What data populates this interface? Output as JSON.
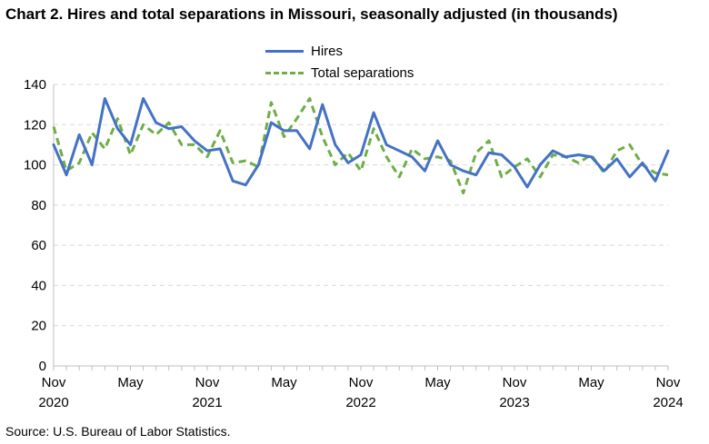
{
  "chart_data": {
    "type": "line",
    "title": "Chart 2. Hires and total separations in Missouri, seasonally adjusted (in thousands)",
    "xlabel": "",
    "ylabel": "",
    "ylim": [
      0,
      140
    ],
    "y_ticks": [
      0,
      20,
      40,
      60,
      80,
      100,
      120,
      140
    ],
    "grid": "horizontal-dashed",
    "legend_position": "top-center",
    "x_tick_labels": [
      {
        "month": "Nov",
        "year": "2020",
        "index": 0
      },
      {
        "month": "May",
        "year": "",
        "index": 6
      },
      {
        "month": "Nov",
        "year": "2021",
        "index": 12
      },
      {
        "month": "May",
        "year": "",
        "index": 18
      },
      {
        "month": "Nov",
        "year": "2022",
        "index": 24
      },
      {
        "month": "May",
        "year": "",
        "index": 30
      },
      {
        "month": "Nov",
        "year": "2023",
        "index": 36
      },
      {
        "month": "May",
        "year": "",
        "index": 42
      },
      {
        "month": "Nov",
        "year": "2024",
        "index": 48
      }
    ],
    "x": [
      "Nov 2020",
      "Dec 2020",
      "Jan 2021",
      "Feb 2021",
      "Mar 2021",
      "Apr 2021",
      "May 2021",
      "Jun 2021",
      "Jul 2021",
      "Aug 2021",
      "Sep 2021",
      "Oct 2021",
      "Nov 2021",
      "Dec 2021",
      "Jan 2022",
      "Feb 2022",
      "Mar 2022",
      "Apr 2022",
      "May 2022",
      "Jun 2022",
      "Jul 2022",
      "Aug 2022",
      "Sep 2022",
      "Oct 2022",
      "Nov 2022",
      "Dec 2022",
      "Jan 2023",
      "Feb 2023",
      "Mar 2023",
      "Apr 2023",
      "May 2023",
      "Jun 2023",
      "Jul 2023",
      "Aug 2023",
      "Sep 2023",
      "Oct 2023",
      "Nov 2023",
      "Dec 2023",
      "Jan 2024",
      "Feb 2024",
      "Mar 2024",
      "Apr 2024",
      "May 2024",
      "Jun 2024",
      "Jul 2024",
      "Aug 2024",
      "Sep 2024",
      "Oct 2024",
      "Nov 2024"
    ],
    "series": [
      {
        "name": "Hires",
        "color": "#4472c4",
        "style": "solid",
        "values": [
          110,
          95,
          115,
          100,
          133,
          118,
          110,
          133,
          121,
          118,
          119,
          112,
          107,
          108,
          92,
          90,
          100,
          121,
          117,
          117,
          108,
          130,
          110,
          101,
          105,
          126,
          110,
          107,
          104,
          97,
          112,
          100,
          97,
          95,
          106,
          105,
          99,
          89,
          100,
          107,
          104,
          105,
          104,
          97,
          103,
          94,
          101,
          92,
          107
        ]
      },
      {
        "name": "Total separations",
        "color": "#70ad47",
        "style": "dashed",
        "values": [
          119,
          97,
          101,
          116,
          108,
          123,
          105,
          120,
          115,
          121,
          110,
          110,
          104,
          117,
          101,
          102,
          99,
          131,
          114,
          123,
          133,
          114,
          100,
          106,
          97,
          118,
          104,
          94,
          108,
          103,
          104,
          102,
          86,
          106,
          112,
          94,
          99,
          103,
          94,
          105,
          104,
          101,
          105,
          96,
          107,
          110,
          100,
          96,
          95
        ]
      }
    ]
  },
  "footer": {
    "source": "Source: U.S. Bureau of Labor Statistics."
  }
}
